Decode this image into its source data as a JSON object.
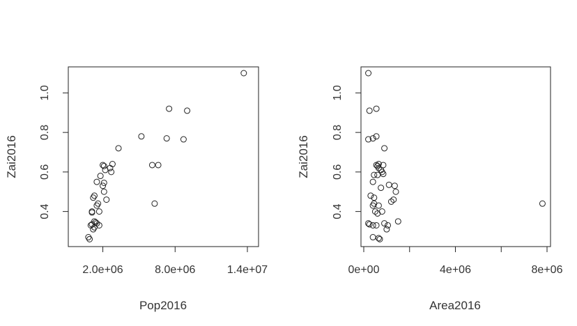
{
  "chart_data": [
    {
      "type": "scatter",
      "title": "",
      "xlabel": "Pop2016",
      "ylabel": "Zai2016",
      "xlim": [
        0,
        14000000
      ],
      "ylim": [
        0.24,
        1.12
      ],
      "xticks": [
        2000000,
        8000000,
        14000000
      ],
      "xtick_labels": [
        "2.0e+06",
        "8.0e+06",
        "1.4e+07"
      ],
      "yticks": [
        0.4,
        0.6,
        0.8,
        1.0
      ],
      "ytick_labels": [
        "0.4",
        "0.6",
        "0.8",
        "1.0"
      ],
      "grid": false,
      "series": [
        {
          "marker": "open-circle",
          "color": "#222222",
          "x": [
            13700000,
            7500000,
            9000000,
            5200000,
            7300000,
            8700000,
            3300000,
            6100000,
            6600000,
            2800000,
            2000000,
            2100000,
            2600000,
            2200000,
            2700000,
            1800000,
            2100000,
            2000000,
            2100000,
            1500000,
            2300000,
            1300000,
            1200000,
            1600000,
            1500000,
            6300000,
            1100000,
            1100000,
            1700000,
            1300000,
            1400000,
            1500000,
            1100000,
            1000000,
            1700000,
            1300000,
            1200000,
            800000,
            900000
          ],
          "y": [
            1.1,
            0.92,
            0.91,
            0.78,
            0.77,
            0.765,
            0.72,
            0.635,
            0.635,
            0.64,
            0.635,
            0.63,
            0.62,
            0.61,
            0.6,
            0.58,
            0.545,
            0.53,
            0.5,
            0.55,
            0.46,
            0.48,
            0.47,
            0.44,
            0.43,
            0.44,
            0.4,
            0.395,
            0.4,
            0.35,
            0.345,
            0.34,
            0.335,
            0.33,
            0.33,
            0.32,
            0.31,
            0.27,
            0.26
          ]
        }
      ]
    },
    {
      "type": "scatter",
      "title": "",
      "xlabel": "Area2016",
      "ylabel": "Zai2016",
      "xlim": [
        0,
        8000000
      ],
      "ylim": [
        0.24,
        1.12
      ],
      "xticks": [
        0,
        2000000,
        4000000,
        6000000,
        8000000
      ],
      "xtick_labels": [
        "0e+00",
        "",
        "4e+06",
        "",
        "8e+06"
      ],
      "yticks": [
        0.4,
        0.6,
        0.8,
        1.0
      ],
      "ytick_labels": [
        "0.4",
        "0.6",
        "0.8",
        "1.0"
      ],
      "grid": false,
      "series": [
        {
          "marker": "open-circle",
          "color": "#222222",
          "x": [
            200000,
            250000,
            550000,
            200000,
            400000,
            550000,
            900000,
            550000,
            650000,
            850000,
            650000,
            600000,
            800000,
            750000,
            850000,
            450000,
            600000,
            400000,
            1100000,
            1350000,
            750000,
            1400000,
            1300000,
            300000,
            450000,
            1200000,
            450000,
            400000,
            650000,
            500000,
            600000,
            800000,
            200000,
            250000,
            400000,
            1050000,
            1500000,
            7800000,
            900000,
            1000000,
            400000,
            650000,
            700000,
            550000
          ],
          "y": [
            1.1,
            0.91,
            0.92,
            0.765,
            0.77,
            0.78,
            0.72,
            0.635,
            0.64,
            0.635,
            0.62,
            0.63,
            0.6,
            0.61,
            0.59,
            0.585,
            0.585,
            0.55,
            0.535,
            0.53,
            0.52,
            0.5,
            0.46,
            0.48,
            0.47,
            0.45,
            0.44,
            0.43,
            0.43,
            0.4,
            0.39,
            0.4,
            0.34,
            0.335,
            0.33,
            0.33,
            0.35,
            0.44,
            0.34,
            0.31,
            0.27,
            0.265,
            0.26,
            0.33
          ]
        }
      ]
    }
  ]
}
